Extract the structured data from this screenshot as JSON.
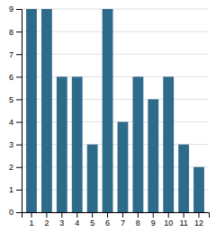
{
  "chart_data": {
    "type": "bar",
    "categories": [
      1,
      2,
      3,
      4,
      5,
      6,
      7,
      8,
      9,
      10,
      11,
      12
    ],
    "values": [
      9,
      9,
      6,
      6,
      3,
      9,
      4,
      6,
      5,
      6,
      3,
      2
    ],
    "color": "#2e6b8a",
    "ylim": [
      0,
      9
    ],
    "yticks": [
      0,
      1,
      2,
      3,
      4,
      5,
      6,
      7,
      8,
      9
    ],
    "grid": true
  }
}
